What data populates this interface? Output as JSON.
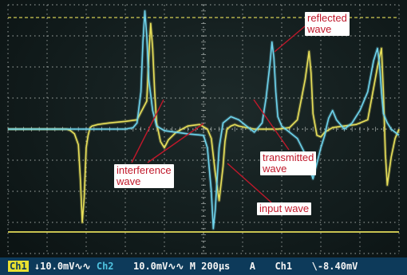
{
  "colors": {
    "ch1_trace": "#e8e05a",
    "ch2_trace": "#6fd4ec",
    "grid": "#c9cfcb",
    "status_bar": "#0d3a5a",
    "annotation_text": "#c0182a",
    "annotation_bg": "#ffffff"
  },
  "annotations": {
    "reflected": "reflected\nwave",
    "interference": "interference\nwave",
    "transmitted": "transmitted\nwave",
    "input": "input wave"
  },
  "status_bar": {
    "ch1_label": "Ch1",
    "ch1_scale": "↓10.0mV∿∿",
    "ch2_label": "Ch2",
    "ch2_scale": "10.0mV∿∿",
    "timebase": "M 200µs",
    "trigger_mode": "A",
    "trigger_source": "Ch1",
    "trigger_level": "\\-8.40mV"
  },
  "chart_data": {
    "type": "line",
    "grid": true,
    "xlim": [
      0,
      10
    ],
    "ylim": [
      -4,
      4
    ],
    "series": [
      {
        "channel": "Ch1",
        "color": "#e8e05a",
        "x": [
          0.0,
          1.5,
          1.6,
          1.7,
          1.8,
          1.85,
          1.9,
          1.95,
          2.0,
          2.05,
          2.1,
          2.15,
          2.3,
          2.6,
          3.0,
          3.3,
          3.55,
          3.6,
          3.65,
          3.7,
          3.75,
          3.8,
          3.9,
          4.0,
          4.1,
          4.3,
          4.6,
          4.9,
          5.1,
          5.2,
          5.3,
          5.4,
          5.5,
          5.55,
          5.6,
          5.7,
          5.8,
          5.9,
          6.1,
          6.3,
          6.6,
          6.9,
          7.2,
          7.4,
          7.6,
          7.7,
          7.75,
          7.8,
          7.9,
          8.0,
          8.1,
          8.3,
          8.6,
          8.9,
          9.2,
          9.45,
          9.55,
          9.6,
          9.65,
          9.7,
          9.8,
          9.9,
          10.0
        ],
        "values": [
          0.0,
          0.0,
          -0.05,
          -0.15,
          -0.5,
          -1.6,
          -3.0,
          -2.2,
          -0.6,
          -0.2,
          0.05,
          0.1,
          0.15,
          0.2,
          0.25,
          0.3,
          0.9,
          2.3,
          3.4,
          2.6,
          1.2,
          0.2,
          -0.4,
          -0.6,
          -0.35,
          -0.1,
          0.1,
          0.15,
          0.0,
          -0.3,
          -1.4,
          -2.3,
          -1.2,
          -0.4,
          0.0,
          0.1,
          0.15,
          0.1,
          0.05,
          0.0,
          0.0,
          0.0,
          0.05,
          0.3,
          1.6,
          2.5,
          1.8,
          0.5,
          -0.2,
          -0.25,
          -0.1,
          0.05,
          0.1,
          0.15,
          0.3,
          2.0,
          2.6,
          1.2,
          -0.8,
          -1.8,
          -0.9,
          -0.3,
          0.0
        ]
      },
      {
        "channel": "Ch2",
        "color": "#6fd4ec",
        "x": [
          0.0,
          3.0,
          3.2,
          3.3,
          3.4,
          3.45,
          3.5,
          3.55,
          3.6,
          3.7,
          3.8,
          4.0,
          4.3,
          4.6,
          5.0,
          5.1,
          5.2,
          5.25,
          5.3,
          5.35,
          5.4,
          5.5,
          5.7,
          5.9,
          6.1,
          6.3,
          6.5,
          6.6,
          6.7,
          6.75,
          6.8,
          6.85,
          6.9,
          7.0,
          7.1,
          7.2,
          7.4,
          7.6,
          7.8,
          8.0,
          8.1,
          8.15,
          8.2,
          8.3,
          8.4,
          8.6,
          8.8,
          9.0,
          9.2,
          9.35,
          9.45,
          9.5,
          9.55,
          9.6,
          9.7,
          9.8,
          10.0
        ],
        "values": [
          0.0,
          0.0,
          0.05,
          0.2,
          1.2,
          2.8,
          3.8,
          3.0,
          1.6,
          0.6,
          0.1,
          -0.05,
          -0.1,
          -0.15,
          -0.2,
          -0.6,
          -2.0,
          -3.2,
          -2.6,
          -1.6,
          -0.6,
          0.2,
          0.4,
          0.3,
          0.1,
          -0.1,
          0.2,
          1.0,
          2.1,
          2.8,
          2.3,
          1.2,
          0.4,
          0.1,
          0.0,
          -0.1,
          -0.3,
          -0.8,
          -1.6,
          -0.6,
          -0.2,
          0.1,
          0.35,
          0.6,
          0.3,
          0.0,
          0.2,
          0.6,
          1.2,
          2.2,
          2.6,
          2.1,
          1.2,
          0.5,
          0.2,
          0.0,
          -0.2
        ]
      }
    ]
  }
}
